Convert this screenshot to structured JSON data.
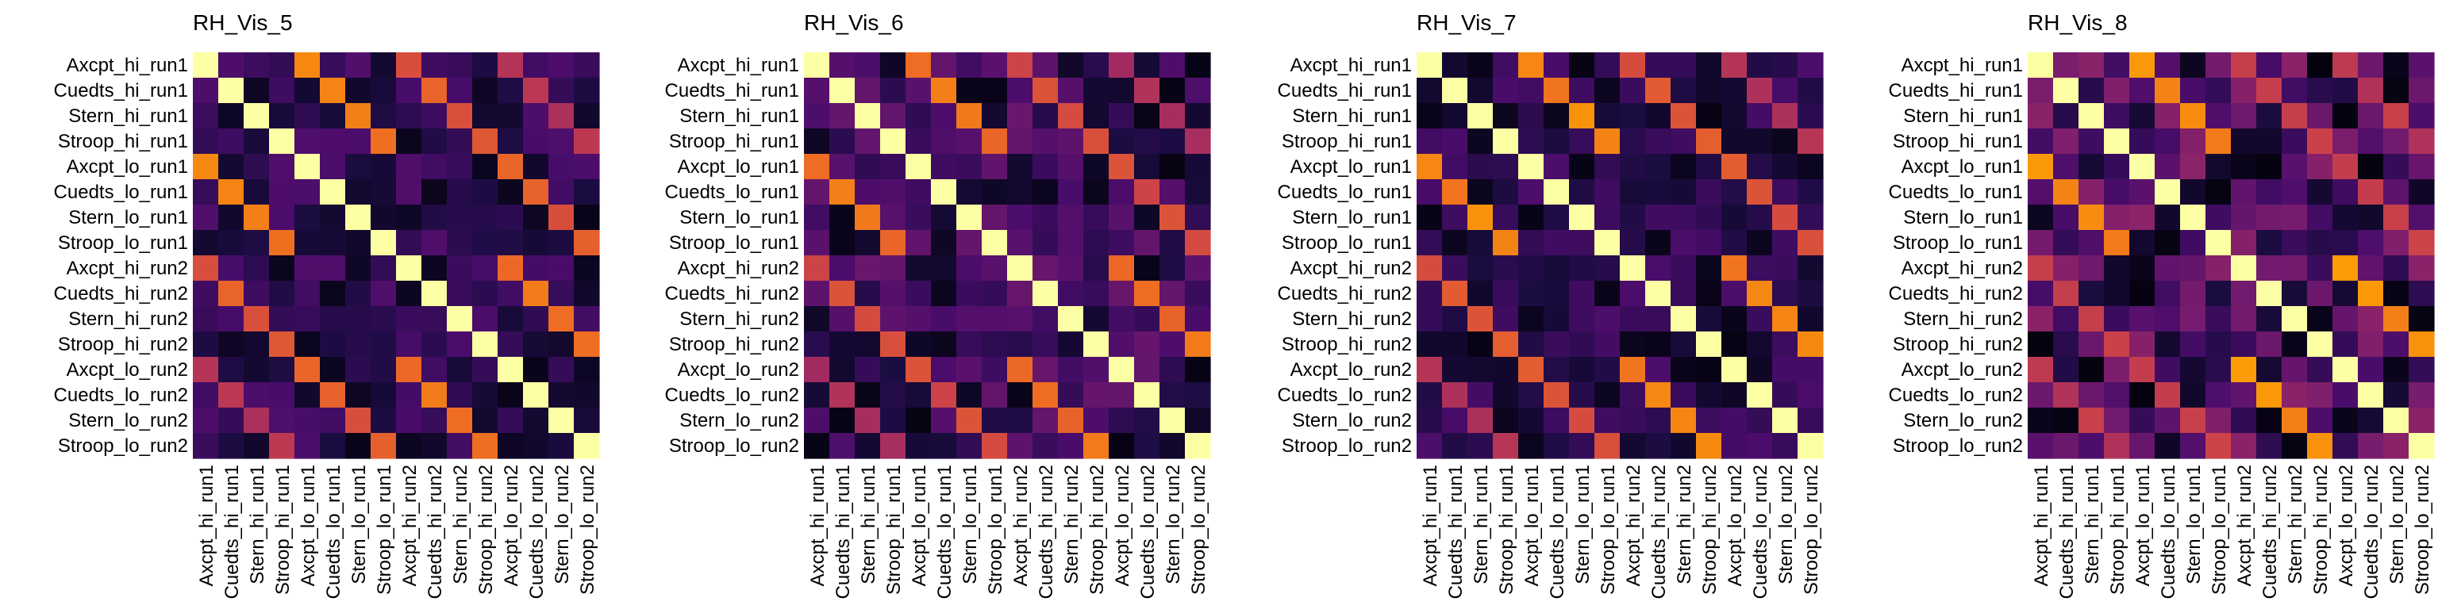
{
  "chart_data": [
    {
      "type": "heatmap",
      "title": "RH_Vis_5",
      "panel_key": "vis5",
      "colorscale": "inferno",
      "xlabel": "",
      "ylabel": "",
      "legend": "none",
      "grid": false
    },
    {
      "type": "heatmap",
      "title": "RH_Vis_6",
      "panel_key": "vis6",
      "colorscale": "inferno",
      "xlabel": "",
      "ylabel": "",
      "legend": "none",
      "grid": false
    },
    {
      "type": "heatmap",
      "title": "RH_Vis_7",
      "panel_key": "vis7",
      "colorscale": "inferno",
      "xlabel": "",
      "ylabel": "",
      "legend": "none",
      "grid": false
    },
    {
      "type": "heatmap",
      "title": "RH_Vis_8",
      "panel_key": "vis8",
      "colorscale": "inferno",
      "xlabel": "",
      "ylabel": "",
      "legend": "none",
      "grid": false
    }
  ],
  "labels": [
    "Axcpt_hi_run1",
    "Cuedts_hi_run1",
    "Stern_hi_run1",
    "Stroop_hi_run1",
    "Axcpt_lo_run1",
    "Cuedts_lo_run1",
    "Stern_lo_run1",
    "Stroop_lo_run1",
    "Axcpt_hi_run2",
    "Cuedts_hi_run2",
    "Stern_hi_run2",
    "Stroop_hi_run2",
    "Axcpt_lo_run2",
    "Cuedts_lo_run2",
    "Stern_lo_run2",
    "Stroop_lo_run2"
  ],
  "matrix_values": {
    "vis5": {
      "diag": 1.0,
      "pair4": 0.7,
      "pair8": 0.62,
      "pair12": 0.48,
      "base": 0.14,
      "spread": 0.1
    },
    "vis6": {
      "diag": 1.0,
      "pair4": 0.68,
      "pair8": 0.58,
      "pair12": 0.46,
      "base": 0.16,
      "spread": 0.14
    },
    "vis7": {
      "diag": 1.0,
      "pair4": 0.72,
      "pair8": 0.6,
      "pair12": 0.5,
      "base": 0.13,
      "spread": 0.1
    },
    "vis8": {
      "diag": 1.0,
      "pair4": 0.74,
      "pair8": 0.55,
      "pair12": 0.5,
      "base": 0.2,
      "spread": 0.18
    }
  },
  "colors": {
    "inferno": [
      "#000004",
      "#1b0c41",
      "#4a0c6b",
      "#781c6d",
      "#a52c60",
      "#cf4446",
      "#ed6925",
      "#fb9b06",
      "#f7d13d",
      "#fcffa4"
    ]
  }
}
